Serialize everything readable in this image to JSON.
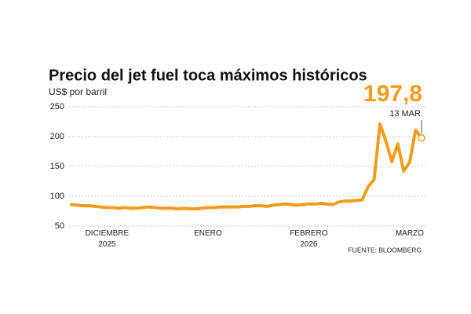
{
  "chart_data": {
    "type": "line",
    "title": "Precio del jet fuel toca máximos históricos",
    "subtitle": "US$ por barril",
    "source": "FUENTE: BLOOMBERG",
    "annotation_value": "197,8",
    "annotation_date": "13 MAR.",
    "categories": [
      null,
      null,
      null,
      null,
      null,
      null,
      "DICIEMBRE 2025",
      null,
      null,
      null,
      null,
      null,
      null,
      null,
      null,
      null,
      null,
      null,
      null,
      null,
      null,
      null,
      null,
      "ENERO",
      null,
      null,
      null,
      null,
      null,
      null,
      null,
      null,
      null,
      null,
      null,
      null,
      null,
      null,
      null,
      null,
      "FEBRERO 2026",
      null,
      null,
      null,
      null,
      null,
      null,
      null,
      null,
      null,
      null,
      null,
      null,
      null,
      null,
      null,
      null,
      "MARZO",
      null,
      null
    ],
    "series": [
      {
        "name": "Jet fuel",
        "color": "#f39c1b",
        "values": [
          86,
          85,
          84,
          84,
          83,
          82,
          81,
          81,
          80,
          81,
          80,
          80,
          81,
          82,
          81,
          80,
          80,
          80,
          79,
          80,
          79,
          79,
          80,
          81,
          81,
          82,
          82,
          82,
          82,
          83,
          83,
          84,
          84,
          83,
          85,
          86,
          87,
          86,
          85,
          86,
          87,
          87,
          88,
          87,
          86,
          90,
          92,
          92,
          93,
          94,
          116,
          128,
          221,
          192,
          158,
          188,
          142,
          157,
          211,
          197.8
        ]
      }
    ],
    "ylim": [
      50,
      250
    ],
    "yticks": [
      50,
      100,
      150,
      200,
      250
    ],
    "grid": true
  }
}
